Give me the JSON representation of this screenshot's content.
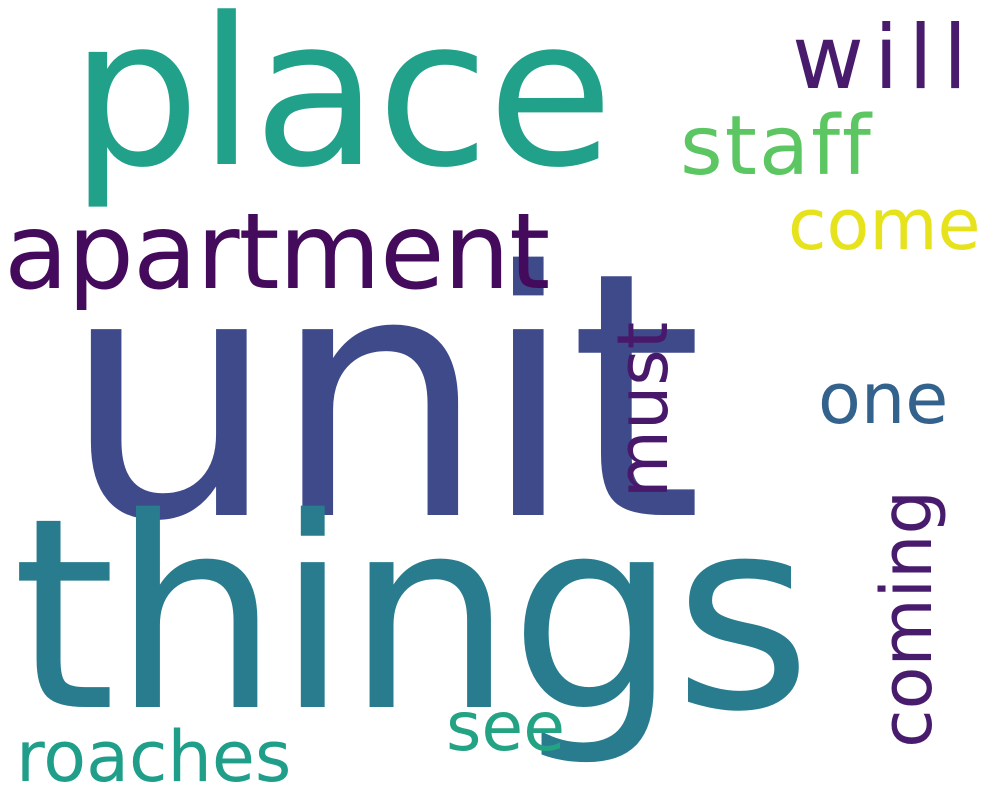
{
  "wordcloud": {
    "words": {
      "unit": "unit",
      "things": "things",
      "place": "place",
      "apartment": "apartment",
      "will": "will",
      "staff": "staff",
      "come": "come",
      "must": "must",
      "one": "one",
      "coming": "coming",
      "see": "see",
      "roaches": "roaches"
    },
    "colors": {
      "unit": "#3f4a8a",
      "things": "#287c8e",
      "place": "#21a08a",
      "apartment": "#440a5c",
      "will": "#481b6d",
      "staff": "#5cc663",
      "come": "#e6e21c",
      "must": "#48186a",
      "one": "#33638d",
      "coming": "#481b6d",
      "see": "#23a383",
      "roaches": "#1f9e89"
    }
  }
}
